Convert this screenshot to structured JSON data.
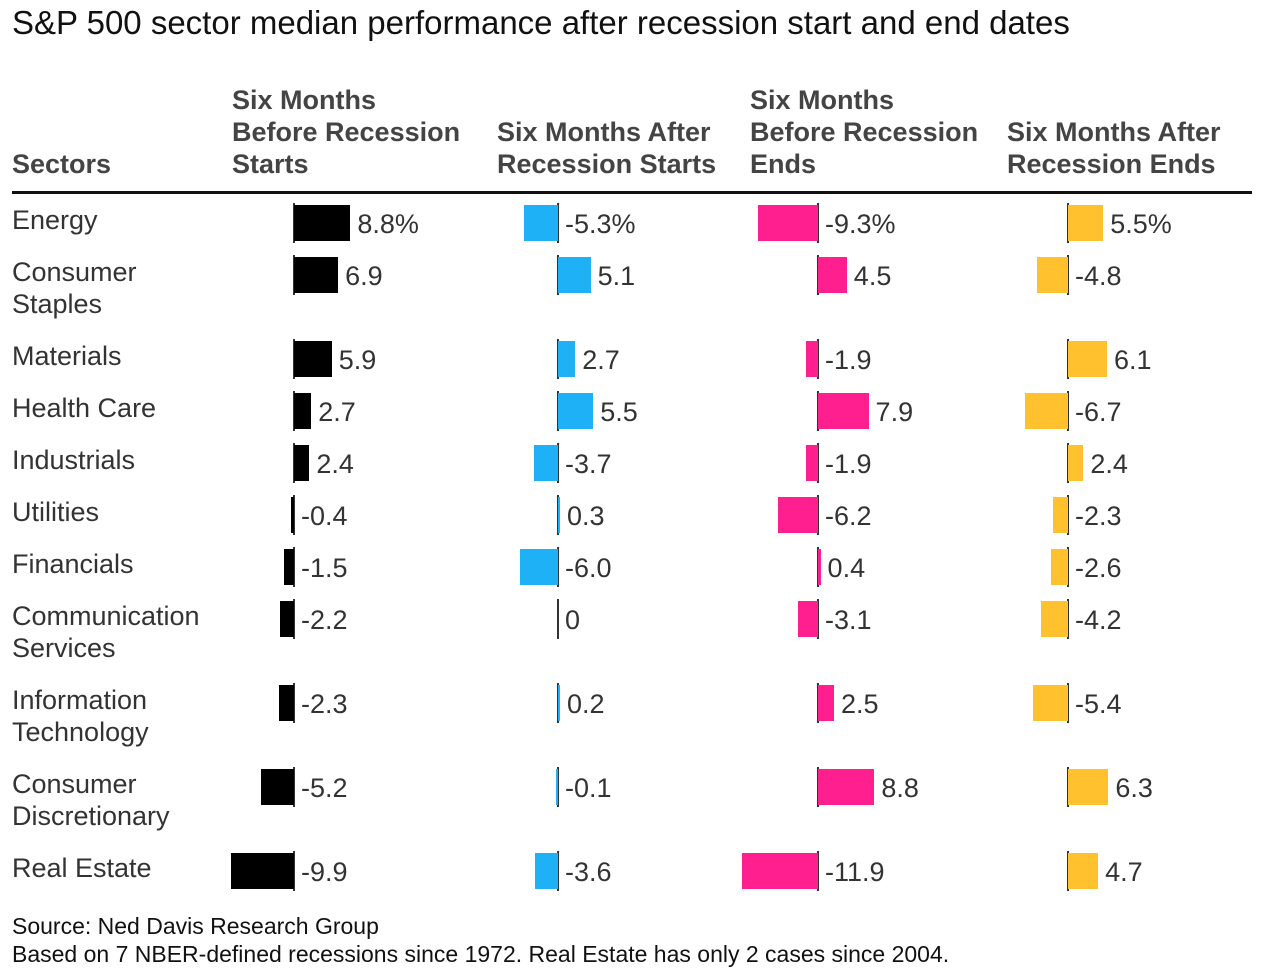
{
  "title": "S&P 500 sector median performance after recession start and end dates",
  "headers": {
    "sectors": "Sectors",
    "columns": [
      "Six Months\nBefore Recession\nStarts",
      "Six Months After\nRecession Starts",
      "Six Months\nBefore Recession\nEnds",
      "Six Months After\nRecession Ends"
    ]
  },
  "colors": [
    "#000000",
    "#1fb1f5",
    "#ff1f8f",
    "#ffc12e"
  ],
  "source": "Source: Ned Davis Research Group",
  "note": "Based on 7 NBER-defined recessions since 1972. Real Estate has only 2 cases since 2004.",
  "chart_data": {
    "type": "bar",
    "categories": [
      "Energy",
      "Consumer\nStaples",
      "Materials",
      "Health Care",
      "Industrials",
      "Utilities",
      "Financials",
      "Communication\nServices",
      "Information\nTechnology",
      "Consumer\nDiscretionary",
      "Real Estate"
    ],
    "series": [
      {
        "name": "Six Months Before Recession Starts",
        "values": [
          8.8,
          6.9,
          5.9,
          2.7,
          2.4,
          -0.4,
          -1.5,
          -2.2,
          -2.3,
          -5.2,
          -9.9
        ],
        "labels": [
          "8.8%",
          "6.9",
          "5.9",
          "2.7",
          "2.4",
          "-0.4",
          "-1.5",
          "-2.2",
          "-2.3",
          "-5.2",
          "-9.9"
        ]
      },
      {
        "name": "Six Months After Recession Starts",
        "values": [
          -5.3,
          5.1,
          2.7,
          5.5,
          -3.7,
          0.3,
          -6.0,
          0,
          0.2,
          -0.1,
          -3.6
        ],
        "labels": [
          "-5.3%",
          "5.1",
          "2.7",
          "5.5",
          "-3.7",
          "0.3",
          "-6.0",
          "0",
          "0.2",
          "-0.1",
          "-3.6"
        ]
      },
      {
        "name": "Six Months Before Recession Ends",
        "values": [
          -9.3,
          4.5,
          -1.9,
          7.9,
          -1.9,
          -6.2,
          0.4,
          -3.1,
          2.5,
          8.8,
          -11.9
        ],
        "labels": [
          "-9.3%",
          "4.5",
          "-1.9",
          "7.9",
          "-1.9",
          "-6.2",
          "0.4",
          "-3.1",
          "2.5",
          "8.8",
          "-11.9"
        ]
      },
      {
        "name": "Six Months After Recession Ends",
        "values": [
          5.5,
          -4.8,
          6.1,
          -6.7,
          2.4,
          -2.3,
          -2.6,
          -4.2,
          -5.4,
          6.3,
          4.7
        ],
        "labels": [
          "5.5%",
          "-4.8",
          "6.1",
          "-6.7",
          "2.4",
          "-2.3",
          "-2.6",
          "-4.2",
          "-5.4",
          "6.3",
          "4.7"
        ]
      }
    ]
  }
}
